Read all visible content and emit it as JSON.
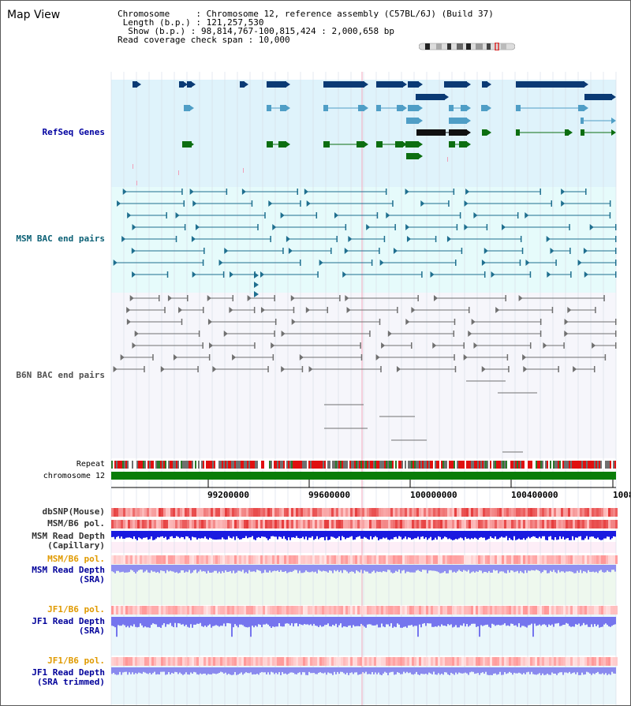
{
  "app": {
    "title": "Map View"
  },
  "info": {
    "chromosome_label": "Chromosome",
    "chromosome_value": "Chromosome 12, reference assembly (C57BL/6J) (Build 37)",
    "length_label": "Length (b.p.)",
    "length_value": "121,257,530",
    "show_label": "Show (b.p.)",
    "show_value": "98,814,767-100,815,424 : 2,000,658 bp",
    "coverage_label": "Read coverage check span",
    "coverage_value": "10,000"
  },
  "tracks": {
    "refseq": "RefSeq Genes",
    "msm_bac": "MSM BAC end pairs",
    "b6n_bac": "B6N BAC end pairs",
    "repeat": "Repeat",
    "chromosome": "chromosome 12",
    "dbsnp": "dbSNP(Mouse)",
    "msm_b6_pol_1": "MSM/B6 pol.",
    "msm_depth_cap_1": "MSM Read Depth",
    "msm_depth_cap_2": "(Capillary)",
    "msm_b6_pol_2": "MSM/B6 pol.",
    "msm_depth_sra_1": "MSM Read Depth",
    "msm_depth_sra_2": "(SRA)",
    "jf1_b6_pol_1": "JF1/B6 pol.",
    "jf1_depth_1": "JF1 Read Depth",
    "jf1_depth_2": "(SRA)",
    "jf1_b6_pol_2": "JF1/B6 pol.",
    "jf1_trim_1": "JF1 Read Depth",
    "jf1_trim_2": "(SRA trimmed)"
  },
  "axis": {
    "ticks": [
      "99200000",
      "99600000",
      "100000000",
      "100400000",
      "1008"
    ]
  },
  "colors": {
    "refseq_bg": "#dff3fb",
    "msm_bg": "#e6fbfb",
    "gene_dark": "#0a3a74",
    "gene_mid": "#4f9ec6",
    "gene_green": "#0c6e10",
    "msm_line": "#1f6f8f",
    "b6n_line": "#707070",
    "msm_label": "#0b6075",
    "refseq_label": "#0000a0",
    "orange_label": "#e09a00",
    "blue_label": "#00009a",
    "chrom_green": "#0a7d08"
  }
}
